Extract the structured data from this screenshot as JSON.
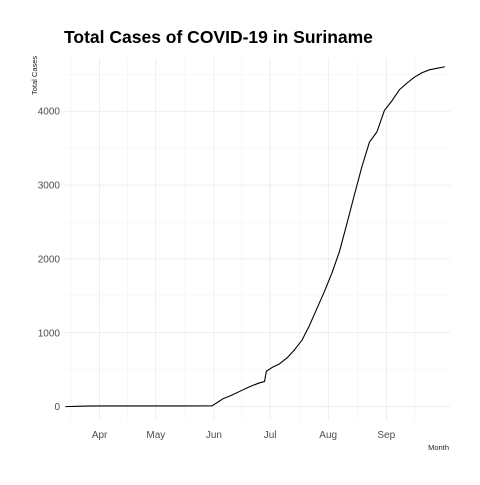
{
  "chart_data": {
    "type": "line",
    "title": "Total Cases of COVID-19 in Suriname",
    "xlabel": "Month",
    "ylabel": "Total Cases",
    "xlim": [
      "2020-03-13",
      "2020-10-05"
    ],
    "ylim": [
      -180,
      4720
    ],
    "grid": true,
    "legend": "none",
    "x_ticks": [
      {
        "date": "2020-04-01",
        "label": "Apr"
      },
      {
        "date": "2020-05-01",
        "label": "May"
      },
      {
        "date": "2020-06-01",
        "label": "Jun"
      },
      {
        "date": "2020-07-01",
        "label": "Jul"
      },
      {
        "date": "2020-08-01",
        "label": "Aug"
      },
      {
        "date": "2020-09-01",
        "label": "Sep"
      }
    ],
    "y_ticks": [
      0,
      1000,
      2000,
      3000,
      4000
    ],
    "series": [
      {
        "color": "#000000",
        "x": [
          "2020-03-14",
          "2020-03-20",
          "2020-03-25",
          "2020-04-01",
          "2020-04-15",
          "2020-05-01",
          "2020-05-15",
          "2020-05-31",
          "2020-06-03",
          "2020-06-06",
          "2020-06-10",
          "2020-06-15",
          "2020-06-20",
          "2020-06-25",
          "2020-06-28",
          "2020-06-29",
          "2020-07-02",
          "2020-07-06",
          "2020-07-10",
          "2020-07-14",
          "2020-07-18",
          "2020-07-22",
          "2020-07-26",
          "2020-07-30",
          "2020-08-03",
          "2020-08-07",
          "2020-08-11",
          "2020-08-15",
          "2020-08-19",
          "2020-08-23",
          "2020-08-27",
          "2020-08-31",
          "2020-09-04",
          "2020-09-08",
          "2020-09-12",
          "2020-09-16",
          "2020-09-20",
          "2020-09-24",
          "2020-09-28",
          "2020-10-02"
        ],
        "values": [
          1,
          5,
          8,
          10,
          10,
          10,
          10,
          12,
          60,
          110,
          150,
          210,
          270,
          320,
          340,
          480,
          530,
          580,
          660,
          770,
          900,
          1100,
          1330,
          1560,
          1810,
          2100,
          2480,
          2870,
          3250,
          3580,
          3720,
          4010,
          4140,
          4290,
          4380,
          4460,
          4520,
          4560,
          4580,
          4600
        ]
      }
    ]
  }
}
